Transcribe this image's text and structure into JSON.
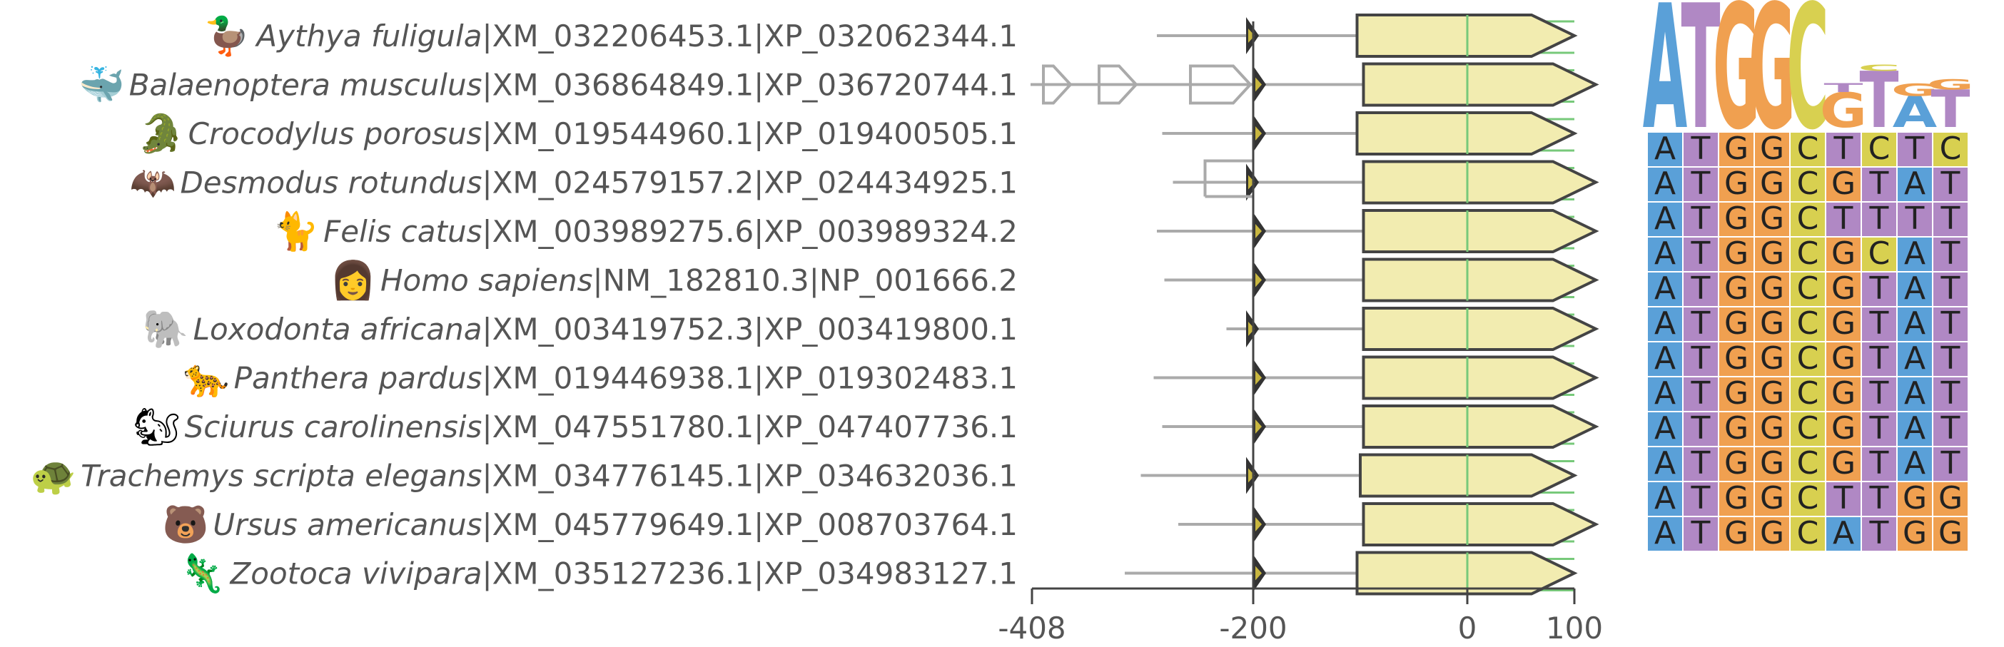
{
  "figure": {
    "axis": {
      "ticks": [
        {
          "value": -408,
          "label": "-408"
        },
        {
          "value": -200,
          "label": "-200"
        },
        {
          "value": 0,
          "label": "0"
        },
        {
          "value": 100,
          "label": "100"
        }
      ]
    },
    "colors": {
      "A": "#5aa0d8",
      "T": "#b088c4",
      "G": "#f0a050",
      "C": "#d8d050",
      "cds_fill": "#f2ecb0",
      "line_gray": "#aaaaaa",
      "green_line": "#77c97a",
      "marker": "#333333"
    },
    "rows": [
      {
        "species": "Aythya fuligula",
        "accession": "|XM_032206453.1|XP_032062344.1",
        "icon": "duck-icon",
        "glyph": "🦆",
        "sequence": "ATGGCTCTC",
        "line_start": -290,
        "cds_start": -103,
        "cds_end": 60
      },
      {
        "species": "Balaenoptera musculus",
        "accession": "|XM_036864849.1|XP_036720744.1",
        "icon": "whale-icon",
        "glyph": "🐳",
        "sequence": "ATGGCGTAT",
        "line_start": -408,
        "cds_start": -97,
        "cds_end": 80
      },
      {
        "species": "Crocodylus porosus",
        "accession": "|XM_019544960.1|XP_019400505.1",
        "icon": "crocodile-icon",
        "glyph": "🐊",
        "sequence": "ATGGCTTTT",
        "line_start": -285,
        "cds_start": -103,
        "cds_end": 60
      },
      {
        "species": "Desmodus rotundus",
        "accession": "|XM_024579157.2|XP_024434925.1",
        "icon": "bat-icon",
        "glyph": "🦇",
        "sequence": "ATGGCGCAT",
        "line_start": -275,
        "cds_start": -97,
        "cds_end": 80
      },
      {
        "species": "Felis catus",
        "accession": "|XM_003989275.6|XP_003989324.2",
        "icon": "cat-icon",
        "glyph": "🐈",
        "sequence": "ATGGCGTAT",
        "line_start": -290,
        "cds_start": -97,
        "cds_end": 80
      },
      {
        "species": "Homo sapiens",
        "accession": "|NM_182810.3|NP_001666.2",
        "icon": "human-icon",
        "glyph": "👩",
        "sequence": "ATGGCGTAT",
        "line_start": -283,
        "cds_start": -97,
        "cds_end": 80
      },
      {
        "species": "Loxodonta africana",
        "accession": "|XM_003419752.3|XP_003419800.1",
        "icon": "elephant-icon",
        "glyph": "🐘",
        "sequence": "ATGGCGTAT",
        "line_start": -225,
        "cds_start": -97,
        "cds_end": 80
      },
      {
        "species": "Panthera pardus",
        "accession": "|XM_019446938.1|XP_019302483.1",
        "icon": "leopard-icon",
        "glyph": "🐆",
        "sequence": "ATGGCGTAT",
        "line_start": -293,
        "cds_start": -97,
        "cds_end": 80
      },
      {
        "species": "Sciurus carolinensis",
        "accession": "|XM_047551780.1|XP_047407736.1",
        "icon": "squirrel-icon",
        "glyph": "🐿",
        "sequence": "ATGGCGTAT",
        "line_start": -285,
        "cds_start": -97,
        "cds_end": 80
      },
      {
        "species": "Trachemys scripta elegans",
        "accession": "|XM_034776145.1|XP_034632036.1",
        "icon": "turtle-icon",
        "glyph": "🐢",
        "sequence": "ATGGCGTAT",
        "line_start": -305,
        "cds_start": -100,
        "cds_end": 60
      },
      {
        "species": "Ursus americanus",
        "accession": "|XM_045779649.1|XP_008703764.1",
        "icon": "bear-icon",
        "glyph": "🐻",
        "sequence": "ATGGCTTGG",
        "line_start": -270,
        "cds_start": -97,
        "cds_end": 80
      },
      {
        "species": "Zootoca vivipara",
        "accession": "|XM_035127236.1|XP_034983127.1",
        "icon": "lizard-icon",
        "glyph": "🦎",
        "sequence": "ATGGCATGG",
        "line_start": -320,
        "cds_start": -103,
        "cds_end": 60
      }
    ],
    "logo": [
      [
        {
          "letter": "A",
          "height": 1.0
        }
      ],
      [
        {
          "letter": "T",
          "height": 1.0
        }
      ],
      [
        {
          "letter": "G",
          "height": 1.0
        }
      ],
      [
        {
          "letter": "G",
          "height": 1.0
        }
      ],
      [
        {
          "letter": "C",
          "height": 1.0
        }
      ],
      [
        {
          "letter": "G",
          "height": 0.28
        },
        {
          "letter": "T",
          "height": 0.07
        }
      ],
      [
        {
          "letter": "T",
          "height": 0.45
        },
        {
          "letter": "C",
          "height": 0.05
        }
      ],
      [
        {
          "letter": "A",
          "height": 0.25
        },
        {
          "letter": "G",
          "height": 0.1
        }
      ],
      [
        {
          "letter": "T",
          "height": 0.3
        },
        {
          "letter": "G",
          "height": 0.08
        }
      ]
    ]
  }
}
